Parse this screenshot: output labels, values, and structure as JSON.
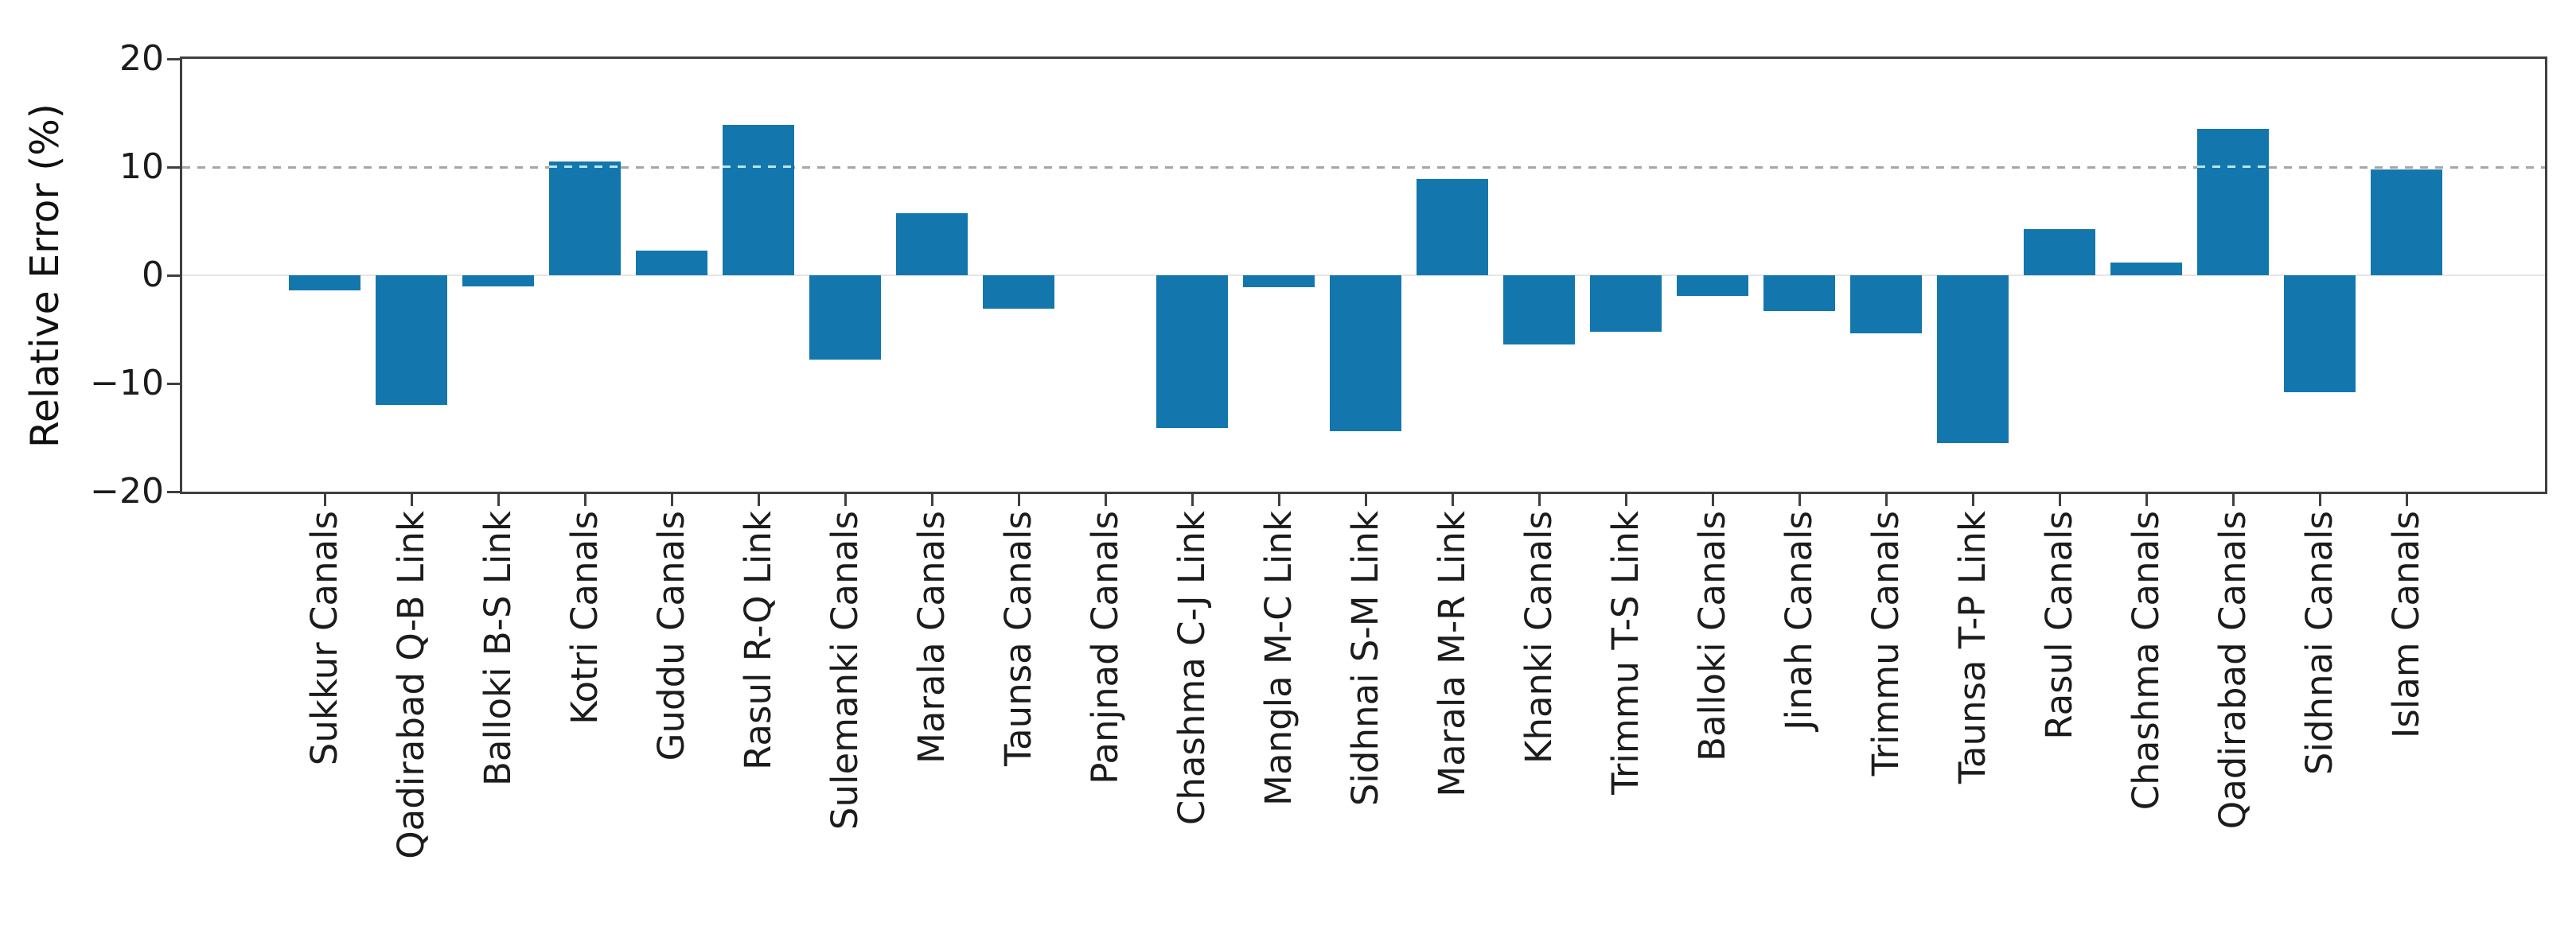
{
  "chart_data": {
    "type": "bar",
    "title": "",
    "xlabel": "",
    "ylabel": "Relative Error (%)",
    "ylim": [
      -20,
      20
    ],
    "yticks": [
      20,
      10,
      0,
      -10,
      -20
    ],
    "ytick_labels": [
      "20",
      "10",
      "0",
      "−10",
      "−20"
    ],
    "grid": {
      "dashed_line_at": 10,
      "light_solid_line_at": 0
    },
    "legend_position": "none",
    "categories": [
      "Sukkur Canals",
      "Qadirabad Q-B Link",
      "Balloki B-S Link",
      "Kotri Canals",
      "Guddu Canals",
      "Rasul R-Q Link",
      "Sulemanki Canals",
      "Marala Canals",
      "Taunsa Canals",
      "Panjnad Canals",
      "Chashma C-J Link",
      "Mangla M-C Link",
      "Sidhnai S-M Link",
      "Marala M-R Link",
      "Khanki Canals",
      "Trimmu T-S Link",
      "Balloki Canals",
      "Jinah Canals",
      "Trimmu Canals",
      "Taunsa T-P Link",
      "Rasul Canals",
      "Chashma Canals",
      "Qadirabad Canals",
      "Sidhnai Canals",
      "Islam Canals"
    ],
    "values": [
      -1.4,
      -12.0,
      -1.0,
      10.5,
      2.3,
      13.9,
      -7.8,
      5.7,
      -3.1,
      0,
      -14.1,
      -1.1,
      -14.4,
      8.9,
      -6.4,
      -5.2,
      -1.9,
      -3.3,
      -5.4,
      -15.5,
      4.3,
      1.2,
      13.5,
      -10.8,
      9.8
    ],
    "style": {
      "bar_color": "#1377ae",
      "spine_color": "#3f3f3f",
      "tick_text_color": "#1c1c1c",
      "grid_dashed_color": "#a6a6a6",
      "grid_zero_color": "#e6e6e6",
      "inbar_dash_color": "#b9e5f3",
      "background": "#ffffff"
    }
  }
}
